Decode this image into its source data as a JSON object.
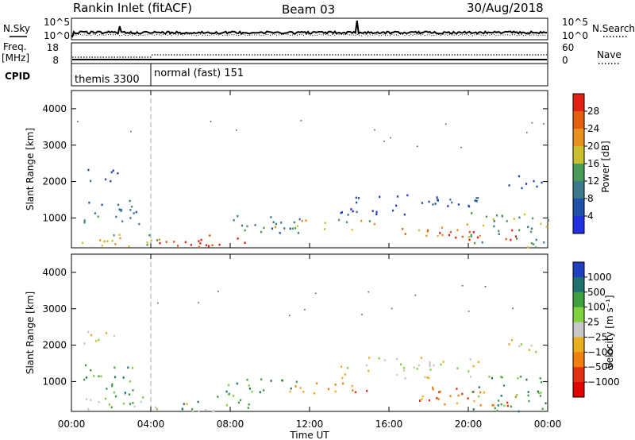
{
  "header": {
    "station": "Rankin Inlet (fitACF)",
    "beam": "Beam 03",
    "date": "30/Aug/2018"
  },
  "top_panel": {
    "left_label": "N.Sky",
    "right_label": "N.Search",
    "left_ticks": [
      "10^5",
      "10^0"
    ],
    "right_ticks": [
      "10^5",
      "10^0"
    ]
  },
  "freq_panel": {
    "label_line1": "Freq.",
    "label_line2": "[MHz]",
    "left_ticks": [
      "18",
      "8"
    ],
    "right_ticks": [
      "60",
      "0"
    ],
    "right_label": "Nave"
  },
  "cpid_panel": {
    "label": "CPID",
    "modes": [
      {
        "name": "themis 3300",
        "start": "00:00",
        "end": "04:00"
      },
      {
        "name": "normal (fast) 151",
        "start": "04:00",
        "end": "00:00"
      }
    ]
  },
  "chart_data": [
    {
      "type": "heatmap",
      "title": "Power",
      "ylabel": "Slant Range [km]",
      "xlabel": "Time UT",
      "x_ticks": [
        "00:00",
        "04:00",
        "08:00",
        "12:00",
        "16:00",
        "20:00",
        "00:00"
      ],
      "y_ticks": [
        1000,
        2000,
        3000,
        4000
      ],
      "ylim": [
        180,
        4500
      ],
      "colorbar": {
        "label": "Power [dB]",
        "ticks": [
          4,
          8,
          12,
          16,
          20,
          24,
          28
        ],
        "colors": [
          "#2030e0",
          "#2050a8",
          "#3c7a8a",
          "#4a9a5a",
          "#c8c030",
          "#e89020",
          "#e06010",
          "#e02010"
        ]
      },
      "blobs": [
        {
          "x": [
            0.5,
            2.3
          ],
          "y": [
            1950,
            2400
          ],
          "level": 1
        },
        {
          "x": [
            0.5,
            4.5
          ],
          "y": [
            200,
            700
          ],
          "level": 4
        },
        {
          "x": [
            0.6,
            3.5
          ],
          "y": [
            700,
            1500
          ],
          "level": 2
        },
        {
          "x": [
            4.0,
            7.5
          ],
          "y": [
            200,
            450
          ],
          "level": 6
        },
        {
          "x": [
            5.5,
            9.5
          ],
          "y": [
            250,
            550
          ],
          "level": 7
        },
        {
          "x": [
            7.0,
            11.5
          ],
          "y": [
            600,
            1100
          ],
          "level": 2
        },
        {
          "x": [
            10.0,
            15.5
          ],
          "y": [
            700,
            1000
          ],
          "level": 4
        },
        {
          "x": [
            13.5,
            20.5
          ],
          "y": [
            1100,
            1700
          ],
          "level": 1
        },
        {
          "x": [
            16.5,
            21.0
          ],
          "y": [
            500,
            900
          ],
          "level": 5
        },
        {
          "x": [
            18.5,
            22.5
          ],
          "y": [
            350,
            700
          ],
          "level": 7
        },
        {
          "x": [
            20.0,
            24.0
          ],
          "y": [
            200,
            1200
          ],
          "level": 3
        },
        {
          "x": [
            22.0,
            24.0
          ],
          "y": [
            1800,
            2200
          ],
          "level": 1
        }
      ]
    },
    {
      "type": "heatmap",
      "title": "Velocity",
      "ylabel": "Slant Range [km]",
      "xlabel": "Time UT",
      "x_ticks": [
        "00:00",
        "04:00",
        "08:00",
        "12:00",
        "16:00",
        "20:00",
        "00:00"
      ],
      "y_ticks": [
        1000,
        2000,
        3000,
        4000
      ],
      "ylim": [
        180,
        4500
      ],
      "colorbar": {
        "label": "Velocity [m s⁻¹]",
        "ticks": [
          1000,
          500,
          100,
          25,
          -25,
          -100,
          -500,
          -1000
        ],
        "colors": [
          "#2040c0",
          "#207070",
          "#40a040",
          "#80d040",
          "#c8c8c8",
          "#e8b020",
          "#f08010",
          "#e03010",
          "#e00000"
        ]
      },
      "blobs": [
        {
          "x": [
            0.5,
            2.3
          ],
          "y": [
            1950,
            2400
          ],
          "level": 4
        },
        {
          "x": [
            0.5,
            4.5
          ],
          "y": [
            200,
            700
          ],
          "level": 3
        },
        {
          "x": [
            0.6,
            3.5
          ],
          "y": [
            700,
            1500
          ],
          "level": 2
        },
        {
          "x": [
            4.0,
            7.5
          ],
          "y": [
            200,
            450
          ],
          "level": 4
        },
        {
          "x": [
            5.5,
            9.5
          ],
          "y": [
            250,
            550
          ],
          "level": 2
        },
        {
          "x": [
            7.0,
            11.5
          ],
          "y": [
            600,
            1100
          ],
          "level": 2
        },
        {
          "x": [
            10.0,
            15.5
          ],
          "y": [
            700,
            1000
          ],
          "level": 6
        },
        {
          "x": [
            13.5,
            20.5
          ],
          "y": [
            1100,
            1700
          ],
          "level": 4
        },
        {
          "x": [
            16.5,
            21.0
          ],
          "y": [
            500,
            900
          ],
          "level": 6
        },
        {
          "x": [
            18.5,
            22.5
          ],
          "y": [
            350,
            700
          ],
          "level": 6
        },
        {
          "x": [
            20.0,
            24.0
          ],
          "y": [
            200,
            1200
          ],
          "level": 2
        },
        {
          "x": [
            22.0,
            24.0
          ],
          "y": [
            1800,
            2200
          ],
          "level": 4
        }
      ]
    }
  ]
}
